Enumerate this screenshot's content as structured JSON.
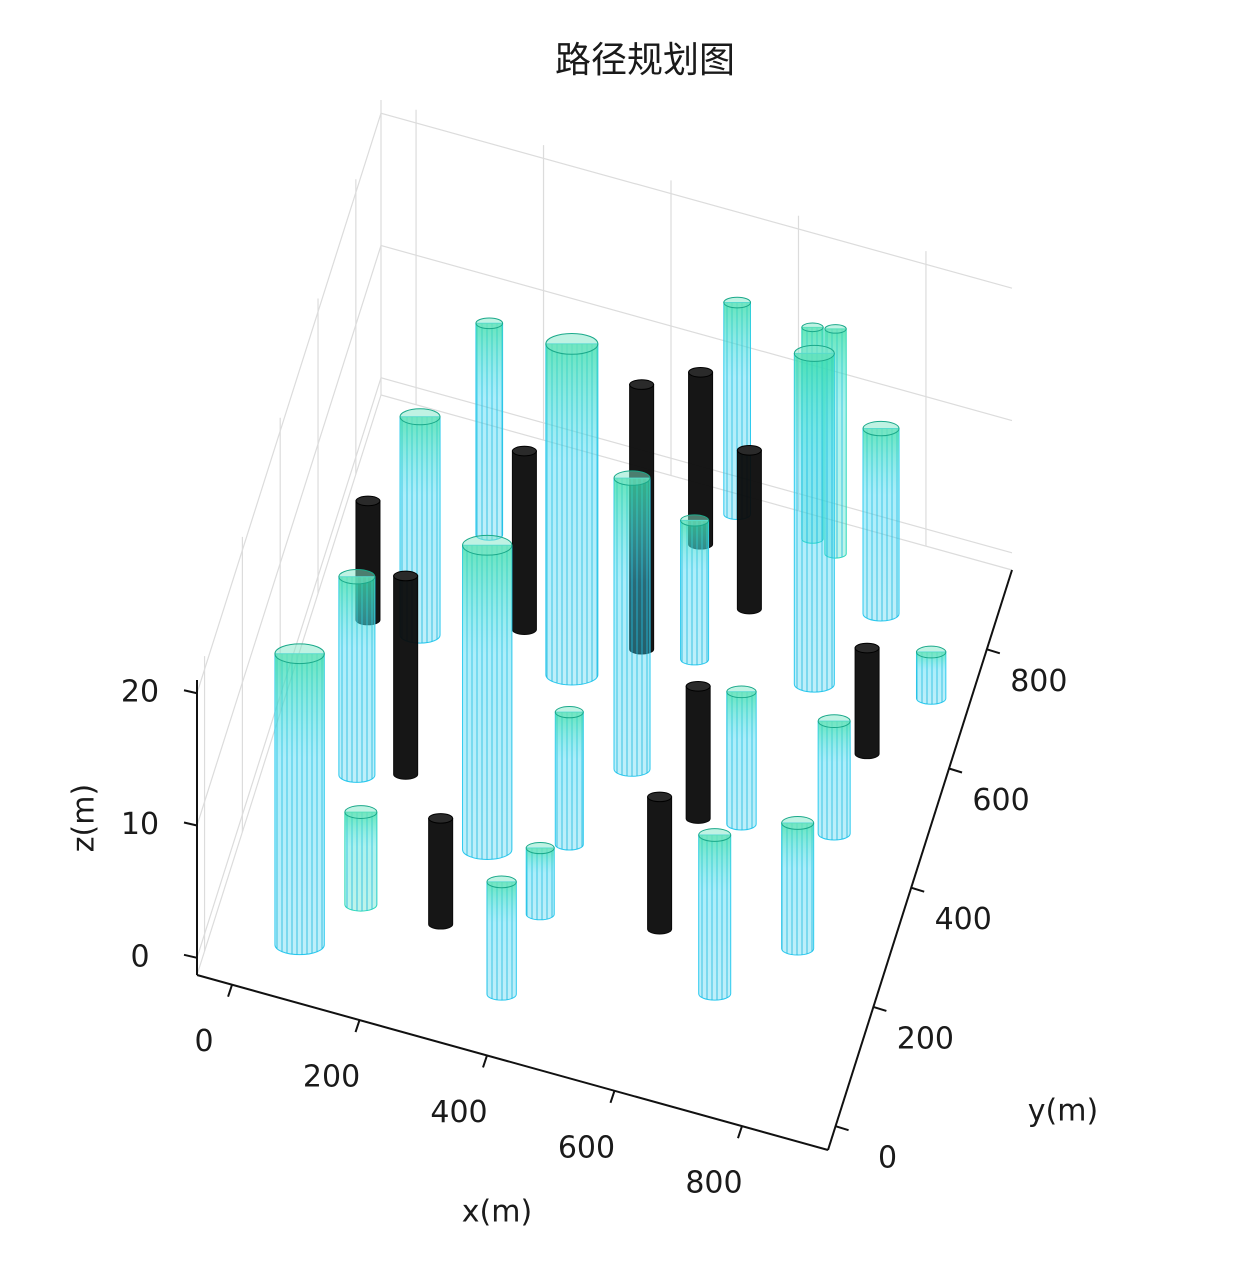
{
  "chart_data": {
    "type": "cylinder3d",
    "title": "路径规划图",
    "xlabel": "x(m)",
    "ylabel": "y(m)",
    "zlabel": "z(m)",
    "xlim": [
      -55,
      935
    ],
    "ylim": [
      -40,
      933
    ],
    "zlim": [
      -1.3,
      21
    ],
    "xticks": [
      0,
      200,
      400,
      600,
      800
    ],
    "yticks": [
      0,
      200,
      400,
      600,
      800
    ],
    "zticks": [
      0,
      10,
      20
    ],
    "grid": true,
    "obstacles": [
      {
        "x": 87,
        "y": 24,
        "radius": 37,
        "height": 22,
        "color": "#2bc9ee"
      },
      {
        "x": 92,
        "y": 310,
        "radius": 27,
        "height": 15,
        "color": "#2bc9ee"
      },
      {
        "x": 157,
        "y": 112,
        "radius": 24,
        "height": 7,
        "color": "#2bd9b8"
      },
      {
        "x": 37,
        "y": 554,
        "radius": 18,
        "height": 9,
        "color": "#0a0a0a"
      },
      {
        "x": 162,
        "y": 332,
        "radius": 18,
        "height": 15,
        "color": "#0a0a0a"
      },
      {
        "x": 119,
        "y": 553,
        "radius": 30,
        "height": 16.5,
        "color": "#2bc9ee"
      },
      {
        "x": 281,
        "y": 116,
        "radius": 18,
        "height": 8,
        "color": "#0a0a0a"
      },
      {
        "x": 314,
        "y": 251,
        "radius": 37,
        "height": 23,
        "color": "#2bc9ee"
      },
      {
        "x": 401,
        "y": 34,
        "radius": 22,
        "height": 8.5,
        "color": "#2bc9ee"
      },
      {
        "x": 173,
        "y": 737,
        "radius": 20,
        "height": 16,
        "color": "#2bc9ee"
      },
      {
        "x": 267,
        "y": 606,
        "radius": 18,
        "height": 13.5,
        "color": "#0a0a0a"
      },
      {
        "x": 420,
        "y": 174,
        "radius": 21,
        "height": 5,
        "color": "#2bc9ee"
      },
      {
        "x": 430,
        "y": 294,
        "radius": 21,
        "height": 10,
        "color": "#2bc9ee"
      },
      {
        "x": 356,
        "y": 557,
        "radius": 39,
        "height": 25,
        "color": "#2bc9ee"
      },
      {
        "x": 486,
        "y": 437,
        "radius": 27,
        "height": 22,
        "color": "#2bc9ee"
      },
      {
        "x": 445,
        "y": 626,
        "radius": 18,
        "height": 20,
        "color": "#0a0a0a"
      },
      {
        "x": 599,
        "y": 202,
        "radius": 18,
        "height": 10,
        "color": "#0a0a0a"
      },
      {
        "x": 526,
        "y": 633,
        "radius": 21,
        "height": 10.5,
        "color": "#2bc9ee"
      },
      {
        "x": 604,
        "y": 389,
        "radius": 18,
        "height": 10,
        "color": "#0a0a0a"
      },
      {
        "x": 708,
        "y": 126,
        "radius": 24,
        "height": 12,
        "color": "#2bc9ee"
      },
      {
        "x": 482,
        "y": 813,
        "radius": 18,
        "height": 13,
        "color": "#0a0a0a"
      },
      {
        "x": 669,
        "y": 399,
        "radius": 22,
        "height": 10,
        "color": "#2bc9ee"
      },
      {
        "x": 521,
        "y": 875,
        "radius": 20,
        "height": 16,
        "color": "#2bc9ee"
      },
      {
        "x": 582,
        "y": 734,
        "radius": 18,
        "height": 12,
        "color": "#0a0a0a"
      },
      {
        "x": 807,
        "y": 231,
        "radius": 24,
        "height": 9.5,
        "color": "#2bc9ee"
      },
      {
        "x": 710,
        "y": 646,
        "radius": 30,
        "height": 25,
        "color": "#2bc9ee"
      },
      {
        "x": 807,
        "y": 424,
        "radius": 24,
        "height": 8.5,
        "color": "#2bc9ee"
      },
      {
        "x": 641,
        "y": 869,
        "radius": 16,
        "height": 16,
        "color": "#2bd9b8"
      },
      {
        "x": 681,
        "y": 856,
        "radius": 16,
        "height": 17,
        "color": "#2bd9b8"
      },
      {
        "x": 774,
        "y": 783,
        "radius": 27,
        "height": 14,
        "color": "#2bc9ee"
      },
      {
        "x": 818,
        "y": 561,
        "radius": 18,
        "height": 8,
        "color": "#0a0a0a"
      },
      {
        "x": 885,
        "y": 674,
        "radius": 22,
        "height": 3.5,
        "color": "#2bc9ee"
      }
    ]
  }
}
